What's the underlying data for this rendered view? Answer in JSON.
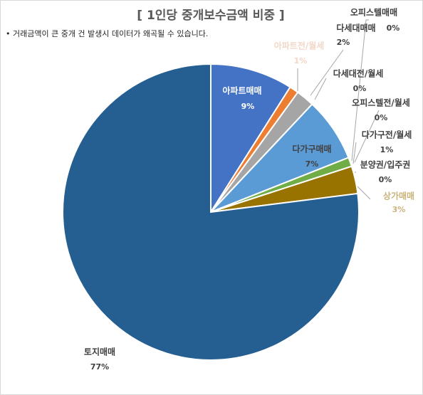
{
  "chart_data": {
    "type": "pie",
    "title": "[ 1인당 중개보수금액 비중 ]",
    "subtitle": "• 거래금액이 큰 중개 건 발생시 데이터가 왜곡될 수 있습니다.",
    "categories": [
      "아파트매매",
      "아파트전/월세",
      "다세대매매",
      "오피스텔매매",
      "다세대전/월세",
      "다가구매매",
      "오피스텔전/월세",
      "다가구전/월세",
      "분양권/입주권",
      "상가매매",
      "토지매매"
    ],
    "values": [
      9,
      1,
      2,
      0,
      0,
      7,
      0,
      1,
      0,
      3,
      77
    ],
    "value_labels": [
      "9%",
      "1%",
      "2%",
      "0%",
      "0%",
      "7%",
      "0%",
      "1%",
      "0%",
      "3%",
      "77%"
    ],
    "colors": [
      "#4472c4",
      "#ed7d31",
      "#a5a5a5",
      "#ffc000",
      "#264478",
      "#5b9bd5",
      "#9e480e",
      "#70ad47",
      "#636363",
      "#997300",
      "#255e91"
    ]
  }
}
